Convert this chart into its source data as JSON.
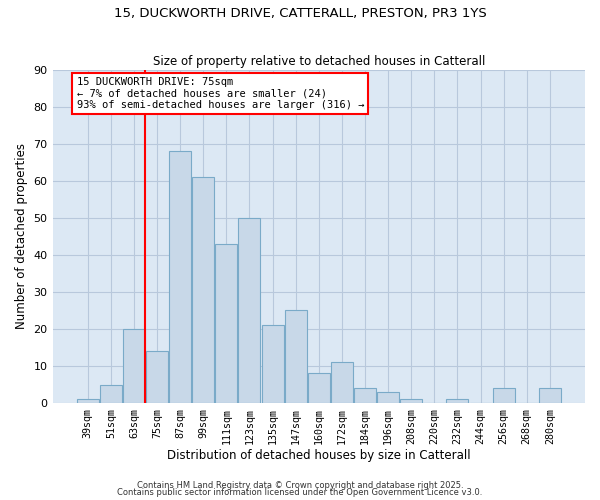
{
  "title": "15, DUCKWORTH DRIVE, CATTERALL, PRESTON, PR3 1YS",
  "subtitle": "Size of property relative to detached houses in Catterall",
  "xlabel": "Distribution of detached houses by size in Catterall",
  "ylabel": "Number of detached properties",
  "bar_color": "#c8d8e8",
  "bar_edge_color": "#7aaac8",
  "background_color": "#dce8f4",
  "categories": [
    "39sqm",
    "51sqm",
    "63sqm",
    "75sqm",
    "87sqm",
    "99sqm",
    "111sqm",
    "123sqm",
    "135sqm",
    "147sqm",
    "160sqm",
    "172sqm",
    "184sqm",
    "196sqm",
    "208sqm",
    "220sqm",
    "232sqm",
    "244sqm",
    "256sqm",
    "268sqm",
    "280sqm"
  ],
  "values": [
    1,
    5,
    20,
    14,
    68,
    61,
    43,
    50,
    21,
    25,
    8,
    11,
    4,
    3,
    1,
    0,
    1,
    0,
    4,
    0,
    4
  ],
  "red_line_index": 3,
  "annotation_title": "15 DUCKWORTH DRIVE: 75sqm",
  "annotation_line1": "← 7% of detached houses are smaller (24)",
  "annotation_line2": "93% of semi-detached houses are larger (316) →",
  "annotation_box_color": "white",
  "annotation_edge_color": "red",
  "ylim": [
    0,
    90
  ],
  "yticks": [
    0,
    10,
    20,
    30,
    40,
    50,
    60,
    70,
    80,
    90
  ],
  "footer1": "Contains HM Land Registry data © Crown copyright and database right 2025.",
  "footer2": "Contains public sector information licensed under the Open Government Licence v3.0.",
  "grid_color": "#b8c8dc"
}
